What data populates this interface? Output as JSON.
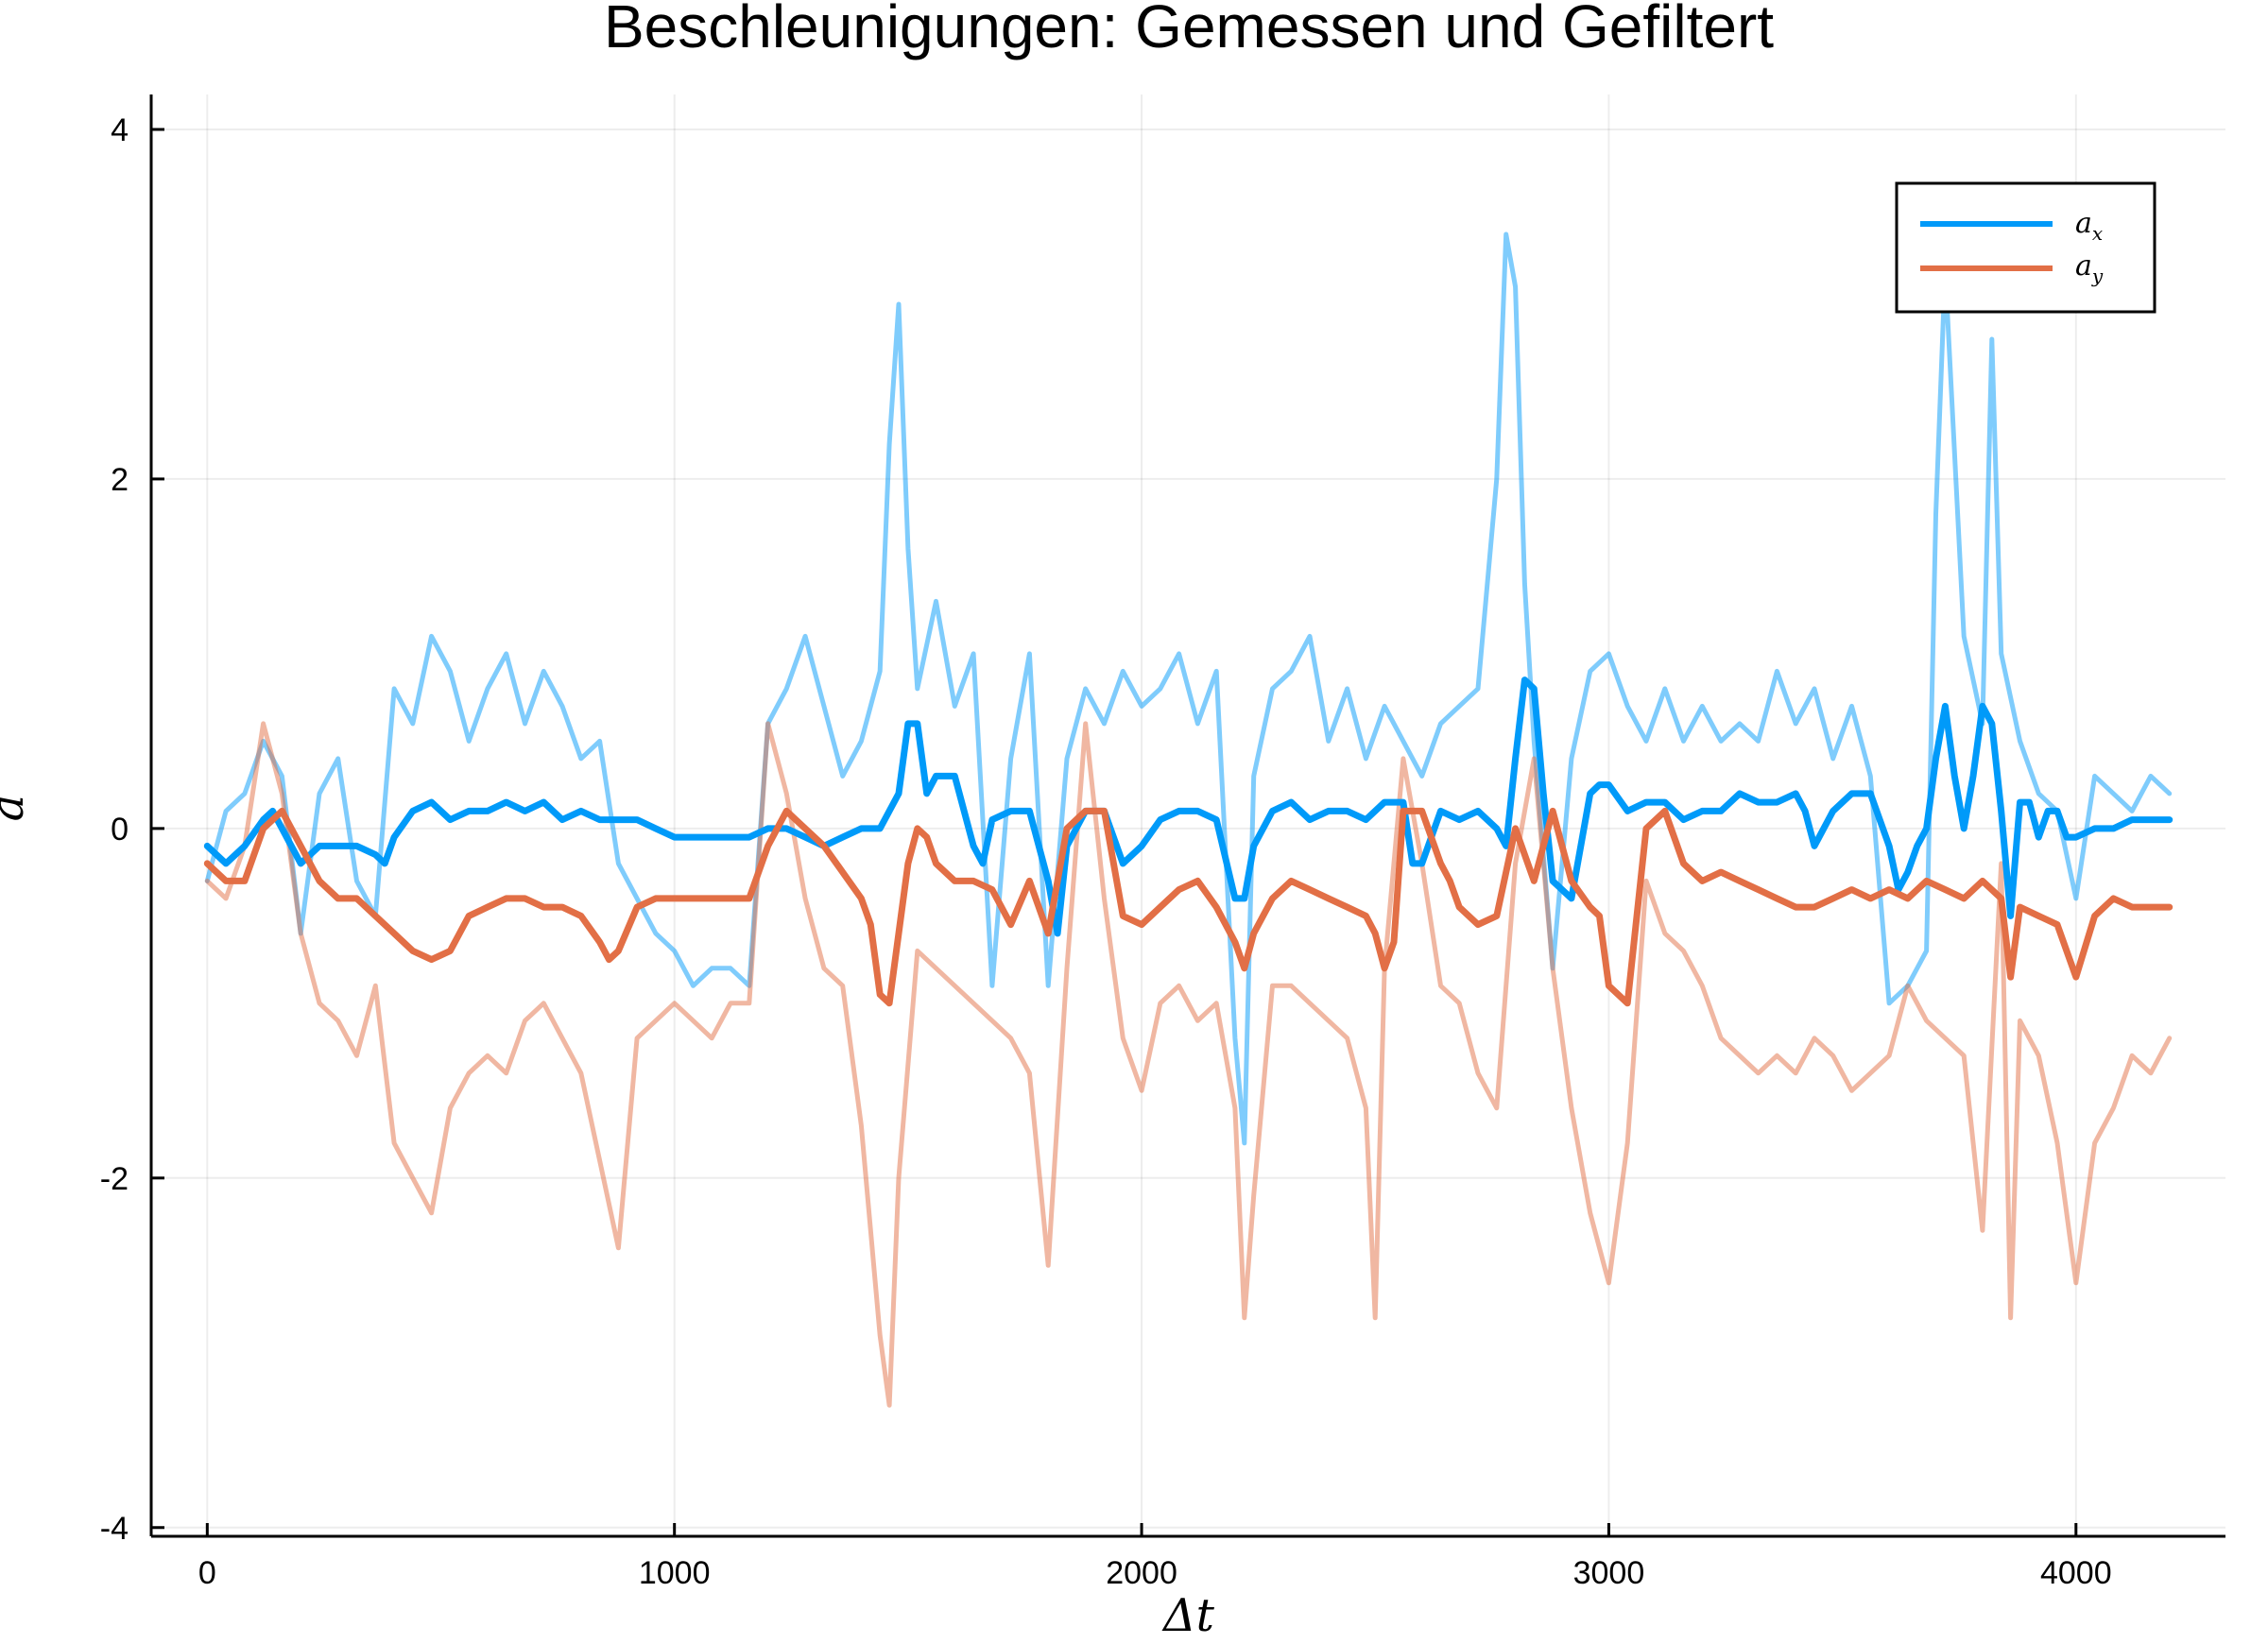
{
  "chart_data": {
    "type": "line",
    "title": "Beschleunigungen: Gemessen und Gefiltert",
    "xlabel": "Δt",
    "ylabel": "a",
    "xlim": [
      -120,
      4320
    ],
    "ylim": [
      -4.05,
      4.2
    ],
    "x_ticks": [
      0,
      1000,
      2000,
      3000,
      4000
    ],
    "y_ticks": [
      -4,
      -2,
      0,
      2,
      4
    ],
    "x_tick_labels": [
      "0",
      "1000",
      "2000",
      "3000",
      "4000"
    ],
    "y_tick_labels": [
      "-4",
      "-2",
      "0",
      "2",
      "4"
    ],
    "grid": true,
    "legend_position": "top-right",
    "colors": {
      "ax": "#009af9",
      "ay": "#e26f46"
    },
    "legend": [
      {
        "base": "a",
        "sub": "x",
        "color": "#009af9"
      },
      {
        "base": "a",
        "sub": "y",
        "color": "#e26f46"
      }
    ],
    "measured_alpha": 0.5,
    "series": [
      {
        "name": "a_x",
        "kind": "measured",
        "color": "#009af9",
        "x": [
          0,
          40,
          80,
          120,
          160,
          200,
          240,
          280,
          320,
          360,
          400,
          440,
          480,
          520,
          560,
          600,
          640,
          680,
          720,
          760,
          800,
          840,
          880,
          920,
          960,
          1000,
          1040,
          1080,
          1120,
          1160,
          1200,
          1240,
          1280,
          1320,
          1360,
          1400,
          1440,
          1460,
          1480,
          1500,
          1520,
          1560,
          1600,
          1640,
          1680,
          1720,
          1760,
          1800,
          1840,
          1880,
          1920,
          1960,
          2000,
          2040,
          2080,
          2120,
          2160,
          2200,
          2220,
          2240,
          2280,
          2320,
          2360,
          2400,
          2440,
          2480,
          2520,
          2560,
          2600,
          2640,
          2680,
          2720,
          2760,
          2780,
          2800,
          2820,
          2840,
          2880,
          2920,
          2960,
          3000,
          3040,
          3080,
          3120,
          3160,
          3200,
          3240,
          3280,
          3320,
          3360,
          3400,
          3440,
          3480,
          3520,
          3560,
          3600,
          3640,
          3680,
          3700,
          3720,
          3760,
          3800,
          3820,
          3840,
          3880,
          3920,
          3960,
          4000,
          4040,
          4080,
          4120,
          4160,
          4200
        ],
        "y": [
          -0.3,
          0.1,
          0.2,
          0.5,
          0.3,
          -0.6,
          0.2,
          0.4,
          -0.3,
          -0.5,
          0.8,
          0.6,
          1.1,
          0.9,
          0.5,
          0.8,
          1.0,
          0.6,
          0.9,
          0.7,
          0.4,
          0.5,
          -0.2,
          -0.4,
          -0.6,
          -0.7,
          -0.9,
          -0.8,
          -0.8,
          -0.9,
          0.6,
          0.8,
          1.1,
          0.7,
          0.3,
          0.5,
          0.9,
          2.2,
          3.0,
          1.6,
          0.8,
          1.3,
          0.7,
          1.0,
          -0.9,
          0.4,
          1.0,
          -0.9,
          0.4,
          0.8,
          0.6,
          0.9,
          0.7,
          0.8,
          1.0,
          0.6,
          0.9,
          -1.2,
          -1.8,
          0.3,
          0.8,
          0.9,
          1.1,
          0.5,
          0.8,
          0.4,
          0.7,
          0.5,
          0.3,
          0.6,
          0.7,
          0.8,
          2.0,
          3.4,
          3.1,
          1.4,
          0.5,
          -0.8,
          0.4,
          0.9,
          1.0,
          0.7,
          0.5,
          0.8,
          0.5,
          0.7,
          0.5,
          0.6,
          0.5,
          0.9,
          0.6,
          0.8,
          0.4,
          0.7,
          0.3,
          -1.0,
          -0.9,
          -0.7,
          1.8,
          3.2,
          1.1,
          0.6,
          2.8,
          1.0,
          0.5,
          0.2,
          0.1,
          -0.4,
          0.3,
          0.2,
          0.1,
          0.3,
          0.2
        ]
      },
      {
        "name": "a_y",
        "kind": "measured",
        "color": "#e26f46",
        "x": [
          0,
          40,
          80,
          120,
          160,
          200,
          240,
          280,
          320,
          360,
          400,
          440,
          480,
          520,
          560,
          600,
          640,
          680,
          720,
          760,
          800,
          840,
          880,
          920,
          960,
          1000,
          1040,
          1080,
          1120,
          1160,
          1200,
          1240,
          1280,
          1320,
          1360,
          1400,
          1440,
          1460,
          1480,
          1520,
          1560,
          1600,
          1640,
          1680,
          1720,
          1760,
          1800,
          1840,
          1880,
          1920,
          1960,
          2000,
          2040,
          2080,
          2120,
          2160,
          2200,
          2220,
          2240,
          2280,
          2320,
          2360,
          2400,
          2440,
          2480,
          2500,
          2520,
          2560,
          2600,
          2640,
          2680,
          2720,
          2760,
          2800,
          2840,
          2880,
          2920,
          2960,
          3000,
          3040,
          3080,
          3120,
          3160,
          3200,
          3240,
          3280,
          3320,
          3360,
          3400,
          3440,
          3480,
          3520,
          3560,
          3600,
          3640,
          3680,
          3720,
          3760,
          3800,
          3840,
          3860,
          3880,
          3920,
          3960,
          4000,
          4040,
          4080,
          4120,
          4160,
          4200
        ],
        "y": [
          -0.3,
          -0.4,
          -0.1,
          0.6,
          0.2,
          -0.6,
          -1.0,
          -1.1,
          -1.3,
          -0.9,
          -1.8,
          -2.0,
          -2.2,
          -1.6,
          -1.4,
          -1.3,
          -1.4,
          -1.1,
          -1.0,
          -1.2,
          -1.4,
          -1.9,
          -2.4,
          -1.2,
          -1.1,
          -1.0,
          -1.1,
          -1.2,
          -1.0,
          -1.0,
          0.6,
          0.2,
          -0.4,
          -0.8,
          -0.9,
          -1.7,
          -2.9,
          -3.3,
          -2.0,
          -0.7,
          -0.8,
          -0.9,
          -1.0,
          -1.1,
          -1.2,
          -1.4,
          -2.5,
          -0.8,
          0.6,
          -0.4,
          -1.2,
          -1.5,
          -1.0,
          -0.9,
          -1.1,
          -1.0,
          -1.6,
          -2.8,
          -2.1,
          -0.9,
          -0.9,
          -1.0,
          -1.1,
          -1.2,
          -1.6,
          -2.8,
          -0.8,
          0.4,
          -0.2,
          -0.9,
          -1.0,
          -1.4,
          -1.6,
          -0.2,
          0.4,
          -0.8,
          -1.6,
          -2.2,
          -2.6,
          -1.8,
          -0.3,
          -0.6,
          -0.7,
          -0.9,
          -1.2,
          -1.3,
          -1.4,
          -1.3,
          -1.4,
          -1.2,
          -1.3,
          -1.5,
          -1.4,
          -1.3,
          -0.9,
          -1.1,
          -1.2,
          -1.3,
          -2.3,
          -0.2,
          -2.8,
          -1.1,
          -1.3,
          -1.8,
          -2.6,
          -1.8,
          -1.6,
          -1.3,
          -1.4,
          -1.2
        ]
      },
      {
        "name": "a_x",
        "kind": "filtered",
        "color": "#009af9",
        "x": [
          0,
          40,
          80,
          120,
          140,
          160,
          200,
          240,
          280,
          320,
          360,
          380,
          400,
          440,
          480,
          520,
          560,
          600,
          640,
          680,
          720,
          760,
          800,
          840,
          880,
          920,
          960,
          1000,
          1040,
          1080,
          1120,
          1160,
          1200,
          1240,
          1280,
          1320,
          1360,
          1400,
          1440,
          1460,
          1480,
          1500,
          1520,
          1540,
          1560,
          1600,
          1640,
          1660,
          1680,
          1720,
          1760,
          1800,
          1820,
          1840,
          1880,
          1920,
          1960,
          2000,
          2040,
          2080,
          2120,
          2160,
          2200,
          2220,
          2240,
          2280,
          2320,
          2360,
          2400,
          2440,
          2480,
          2520,
          2560,
          2580,
          2600,
          2640,
          2680,
          2720,
          2760,
          2780,
          2800,
          2820,
          2840,
          2860,
          2880,
          2920,
          2960,
          2980,
          3000,
          3040,
          3080,
          3120,
          3160,
          3200,
          3240,
          3280,
          3320,
          3360,
          3400,
          3420,
          3440,
          3480,
          3520,
          3560,
          3600,
          3620,
          3640,
          3660,
          3680,
          3700,
          3720,
          3740,
          3760,
          3780,
          3800,
          3820,
          3840,
          3860,
          3880,
          3900,
          3920,
          3940,
          3960,
          3980,
          4000,
          4040,
          4080,
          4120,
          4160,
          4200
        ],
        "y": [
          -0.1,
          -0.2,
          -0.1,
          0.05,
          0.1,
          0.0,
          -0.2,
          -0.1,
          -0.1,
          -0.1,
          -0.15,
          -0.2,
          -0.05,
          0.1,
          0.15,
          0.05,
          0.1,
          0.1,
          0.15,
          0.1,
          0.15,
          0.05,
          0.1,
          0.05,
          0.05,
          0.05,
          0.0,
          -0.05,
          -0.05,
          -0.05,
          -0.05,
          -0.05,
          0.0,
          0.0,
          -0.05,
          -0.1,
          -0.05,
          0.0,
          0.0,
          0.1,
          0.2,
          0.6,
          0.6,
          0.2,
          0.3,
          0.3,
          -0.1,
          -0.2,
          0.05,
          0.1,
          0.1,
          -0.3,
          -0.6,
          -0.1,
          0.1,
          0.1,
          -0.2,
          -0.1,
          0.05,
          0.1,
          0.1,
          0.05,
          -0.4,
          -0.4,
          -0.1,
          0.1,
          0.15,
          0.05,
          0.1,
          0.1,
          0.05,
          0.15,
          0.15,
          -0.2,
          -0.2,
          0.1,
          0.05,
          0.1,
          0.0,
          -0.1,
          0.4,
          0.85,
          0.8,
          0.2,
          -0.3,
          -0.4,
          0.2,
          0.25,
          0.25,
          0.1,
          0.15,
          0.15,
          0.05,
          0.1,
          0.1,
          0.2,
          0.15,
          0.15,
          0.2,
          0.1,
          -0.1,
          0.1,
          0.2,
          0.2,
          -0.1,
          -0.35,
          -0.25,
          -0.1,
          0.0,
          0.4,
          0.7,
          0.3,
          0.0,
          0.3,
          0.7,
          0.6,
          0.1,
          -0.5,
          0.15,
          0.15,
          -0.05,
          0.1,
          0.1,
          -0.05,
          -0.05,
          0.0,
          0.0,
          0.05,
          0.05,
          0.05
        ]
      },
      {
        "name": "a_y",
        "kind": "filtered",
        "color": "#e26f46",
        "x": [
          0,
          40,
          80,
          120,
          160,
          200,
          240,
          280,
          320,
          360,
          400,
          440,
          480,
          520,
          560,
          600,
          640,
          680,
          720,
          760,
          800,
          840,
          860,
          880,
          920,
          960,
          1000,
          1040,
          1080,
          1120,
          1160,
          1200,
          1240,
          1280,
          1320,
          1360,
          1400,
          1420,
          1440,
          1460,
          1480,
          1500,
          1520,
          1540,
          1560,
          1600,
          1640,
          1680,
          1700,
          1720,
          1760,
          1800,
          1840,
          1880,
          1920,
          1960,
          2000,
          2040,
          2080,
          2120,
          2160,
          2200,
          2220,
          2240,
          2280,
          2320,
          2360,
          2400,
          2440,
          2480,
          2500,
          2520,
          2540,
          2560,
          2600,
          2640,
          2660,
          2680,
          2720,
          2760,
          2800,
          2840,
          2880,
          2920,
          2960,
          2980,
          3000,
          3040,
          3080,
          3120,
          3160,
          3200,
          3240,
          3280,
          3320,
          3360,
          3400,
          3440,
          3480,
          3520,
          3560,
          3600,
          3640,
          3680,
          3720,
          3760,
          3800,
          3840,
          3860,
          3880,
          3920,
          3960,
          4000,
          4040,
          4080,
          4120,
          4160,
          4200
        ],
        "y": [
          -0.2,
          -0.3,
          -0.3,
          0.0,
          0.1,
          -0.1,
          -0.3,
          -0.4,
          -0.4,
          -0.5,
          -0.6,
          -0.7,
          -0.75,
          -0.7,
          -0.5,
          -0.45,
          -0.4,
          -0.4,
          -0.45,
          -0.45,
          -0.5,
          -0.65,
          -0.75,
          -0.7,
          -0.45,
          -0.4,
          -0.4,
          -0.4,
          -0.4,
          -0.4,
          -0.4,
          -0.1,
          0.1,
          0.0,
          -0.1,
          -0.25,
          -0.4,
          -0.55,
          -0.95,
          -1.0,
          -0.6,
          -0.2,
          0.0,
          -0.05,
          -0.2,
          -0.3,
          -0.3,
          -0.35,
          -0.45,
          -0.55,
          -0.3,
          -0.6,
          0.0,
          0.1,
          0.1,
          -0.5,
          -0.55,
          -0.45,
          -0.35,
          -0.3,
          -0.45,
          -0.65,
          -0.8,
          -0.6,
          -0.4,
          -0.3,
          -0.35,
          -0.4,
          -0.45,
          -0.5,
          -0.6,
          -0.8,
          -0.65,
          0.1,
          0.1,
          -0.2,
          -0.3,
          -0.45,
          -0.55,
          -0.5,
          0.0,
          -0.3,
          0.1,
          -0.3,
          -0.45,
          -0.5,
          -0.9,
          -1.0,
          0.0,
          0.1,
          -0.2,
          -0.3,
          -0.25,
          -0.3,
          -0.35,
          -0.4,
          -0.45,
          -0.45,
          -0.4,
          -0.35,
          -0.4,
          -0.35,
          -0.4,
          -0.3,
          -0.35,
          -0.4,
          -0.3,
          -0.4,
          -0.85,
          -0.45,
          -0.5,
          -0.55,
          -0.85,
          -0.5,
          -0.4,
          -0.45,
          -0.45,
          -0.45
        ]
      }
    ]
  }
}
